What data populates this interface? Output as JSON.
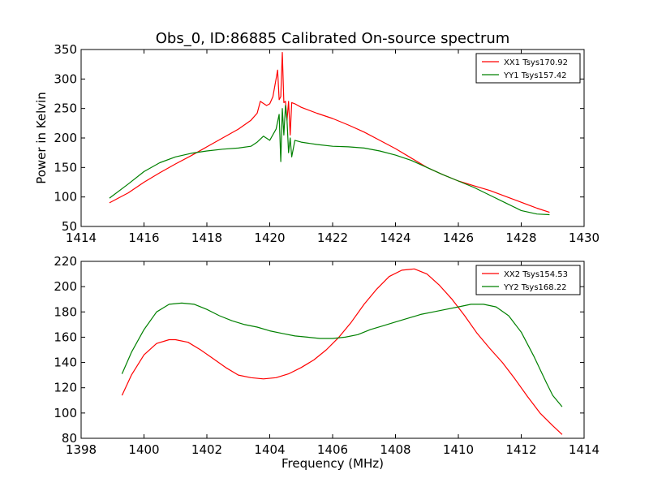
{
  "figure": {
    "title": "Obs_0, ID:86885 Calibrated On-source spectrum"
  },
  "chart_data": [
    {
      "type": "line",
      "title": "Obs_0, ID:86885 Calibrated On-source spectrum",
      "xlabel": "",
      "ylabel": "Power in Kelvin",
      "xlim": [
        1414,
        1430
      ],
      "ylim": [
        50,
        350
      ],
      "xticks": [
        1414,
        1416,
        1418,
        1420,
        1422,
        1424,
        1426,
        1428,
        1430
      ],
      "yticks": [
        50,
        100,
        150,
        200,
        250,
        300,
        350
      ],
      "grid": false,
      "legend_position": "top-right",
      "series": [
        {
          "name": "XX1 Tsys170.92",
          "color": "#ff0000",
          "x": [
            1414.9,
            1415.5,
            1416.0,
            1416.5,
            1417.0,
            1417.5,
            1418.0,
            1418.5,
            1419.0,
            1419.4,
            1419.6,
            1419.7,
            1419.9,
            1420.0,
            1420.1,
            1420.2,
            1420.25,
            1420.3,
            1420.35,
            1420.4,
            1420.45,
            1420.5,
            1420.55,
            1420.6,
            1420.65,
            1420.7,
            1420.8,
            1421.0,
            1421.5,
            1422.0,
            1422.5,
            1423.0,
            1423.5,
            1424.0,
            1424.5,
            1425.0,
            1425.5,
            1426.0,
            1426.5,
            1427.0,
            1427.5,
            1428.0,
            1428.5,
            1428.9
          ],
          "values": [
            90,
            107,
            125,
            141,
            156,
            170,
            185,
            200,
            215,
            230,
            242,
            262,
            255,
            258,
            270,
            300,
            315,
            265,
            270,
            345,
            260,
            262,
            230,
            262,
            205,
            260,
            258,
            252,
            242,
            233,
            222,
            210,
            196,
            182,
            166,
            150,
            138,
            127,
            119,
            111,
            101,
            91,
            81,
            74
          ]
        },
        {
          "name": "YY1 Tsys157.42",
          "color": "#008000",
          "x": [
            1414.9,
            1415.5,
            1416.0,
            1416.5,
            1417.0,
            1417.5,
            1418.0,
            1418.5,
            1419.0,
            1419.4,
            1419.6,
            1419.8,
            1420.0,
            1420.2,
            1420.3,
            1420.35,
            1420.4,
            1420.45,
            1420.5,
            1420.55,
            1420.6,
            1420.65,
            1420.7,
            1420.8,
            1421.0,
            1421.5,
            1422.0,
            1422.5,
            1423.0,
            1423.5,
            1424.0,
            1424.5,
            1425.0,
            1425.5,
            1426.0,
            1426.5,
            1427.0,
            1427.5,
            1428.0,
            1428.5,
            1428.9
          ],
          "values": [
            98,
            122,
            143,
            158,
            168,
            174,
            178,
            181,
            183,
            186,
            193,
            203,
            196,
            215,
            240,
            160,
            250,
            205,
            255,
            230,
            175,
            200,
            168,
            196,
            193,
            189,
            186,
            185,
            183,
            178,
            171,
            162,
            150,
            138,
            127,
            116,
            103,
            90,
            77,
            71,
            70
          ]
        }
      ]
    },
    {
      "type": "line",
      "title": "",
      "xlabel": "Frequency (MHz)",
      "ylabel": "",
      "xlim": [
        1398,
        1414
      ],
      "ylim": [
        80,
        220
      ],
      "xticks": [
        1398,
        1400,
        1402,
        1404,
        1406,
        1408,
        1410,
        1412,
        1414
      ],
      "yticks": [
        80,
        100,
        120,
        140,
        160,
        180,
        200,
        220
      ],
      "grid": false,
      "legend_position": "top-right",
      "series": [
        {
          "name": "XX2 Tsys154.53",
          "color": "#ff0000",
          "x": [
            1399.3,
            1399.6,
            1400.0,
            1400.4,
            1400.8,
            1401.0,
            1401.4,
            1401.8,
            1402.2,
            1402.6,
            1403.0,
            1403.4,
            1403.8,
            1404.2,
            1404.6,
            1405.0,
            1405.4,
            1405.8,
            1406.2,
            1406.6,
            1407.0,
            1407.4,
            1407.8,
            1408.2,
            1408.6,
            1409.0,
            1409.4,
            1409.8,
            1410.2,
            1410.6,
            1411.0,
            1411.4,
            1411.8,
            1412.2,
            1412.6,
            1413.0,
            1413.3
          ],
          "values": [
            114,
            130,
            146,
            155,
            158,
            158,
            156,
            150,
            143,
            136,
            130,
            128,
            127,
            128,
            131,
            136,
            142,
            150,
            160,
            172,
            186,
            198,
            208,
            213,
            214,
            210,
            201,
            190,
            177,
            163,
            151,
            140,
            127,
            113,
            100,
            90,
            83
          ]
        },
        {
          "name": "YY2 Tsys168.22",
          "color": "#008000",
          "x": [
            1399.3,
            1399.6,
            1400.0,
            1400.4,
            1400.8,
            1401.2,
            1401.6,
            1402.0,
            1402.4,
            1402.8,
            1403.2,
            1403.6,
            1404.0,
            1404.4,
            1404.8,
            1405.2,
            1405.6,
            1406.0,
            1406.4,
            1406.8,
            1407.2,
            1407.6,
            1408.0,
            1408.4,
            1408.8,
            1409.2,
            1409.6,
            1410.0,
            1410.4,
            1410.8,
            1411.2,
            1411.6,
            1412.0,
            1412.4,
            1412.8,
            1413.0,
            1413.3
          ],
          "values": [
            131,
            148,
            166,
            180,
            186,
            187,
            186,
            182,
            177,
            173,
            170,
            168,
            165,
            163,
            161,
            160,
            159,
            159,
            160,
            162,
            166,
            169,
            172,
            175,
            178,
            180,
            182,
            184,
            186,
            186,
            184,
            177,
            164,
            145,
            124,
            114,
            105
          ]
        }
      ]
    }
  ]
}
